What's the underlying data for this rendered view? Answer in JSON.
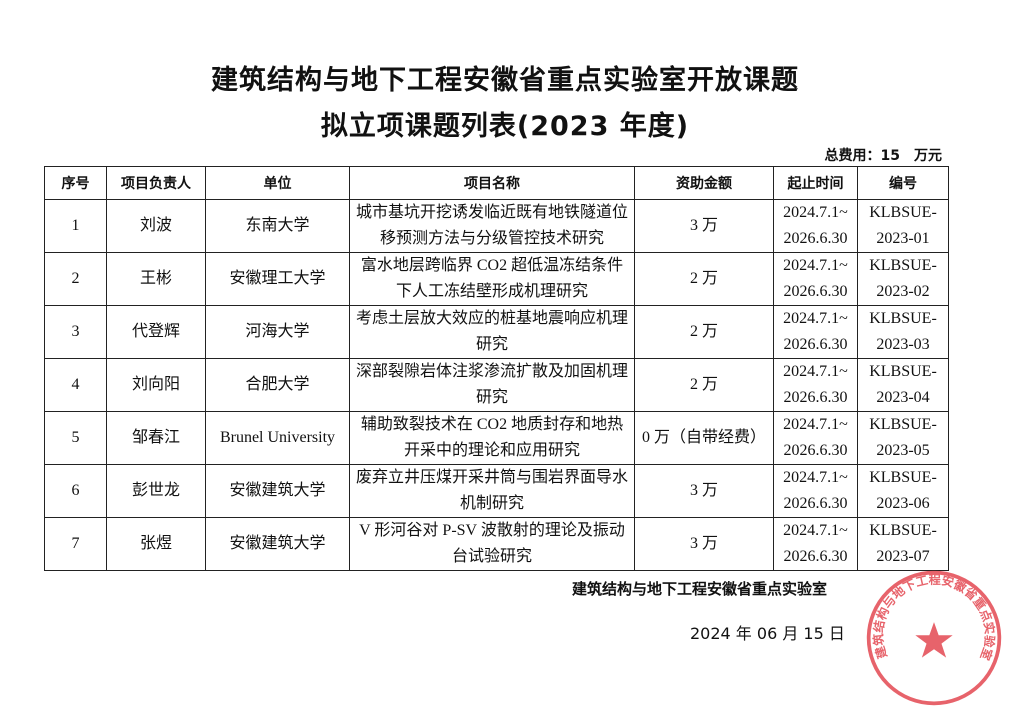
{
  "document": {
    "title_line1": "建筑结构与地下工程安徽省重点实验室开放课题",
    "title_line2": "拟立项课题列表(2023 年度)",
    "total_label": "总费用：15",
    "total_unit": "万元"
  },
  "table": {
    "headers": [
      "序号",
      "项目负责人",
      "单位",
      "项目名称",
      "资助金额",
      "起止时间",
      "编号"
    ],
    "rows": [
      {
        "no": "1",
        "leader": "刘波",
        "unit": "东南大学",
        "title": "城市基坑开挖诱发临近既有地铁隧道位移预测方法与分级管控技术研究",
        "amount": "3 万",
        "start": "2024.7.1~",
        "end": "2026.6.30",
        "code1": "KLBSUE-",
        "code2": "2023-01"
      },
      {
        "no": "2",
        "leader": "王彬",
        "unit": "安徽理工大学",
        "title": "富水地层跨临界 CO2 超低温冻结条件下人工冻结壁形成机理研究",
        "amount": "2 万",
        "start": "2024.7.1~",
        "end": "2026.6.30",
        "code1": "KLBSUE-",
        "code2": "2023-02"
      },
      {
        "no": "3",
        "leader": "代登辉",
        "unit": "河海大学",
        "title": "考虑土层放大效应的桩基地震响应机理研究",
        "amount": "2 万",
        "start": "2024.7.1~",
        "end": "2026.6.30",
        "code1": "KLBSUE-",
        "code2": "2023-03"
      },
      {
        "no": "4",
        "leader": "刘向阳",
        "unit": "合肥大学",
        "title": "深部裂隙岩体注浆渗流扩散及加固机理研究",
        "amount": "2 万",
        "start": "2024.7.1~",
        "end": "2026.6.30",
        "code1": "KLBSUE-",
        "code2": "2023-04"
      },
      {
        "no": "5",
        "leader": "邹春江",
        "unit": "Brunel University",
        "title": "辅助致裂技术在 CO2 地质封存和地热开采中的理论和应用研究",
        "amount": "0 万（自带经费）",
        "start": "2024.7.1~",
        "end": "2026.6.30",
        "code1": "KLBSUE-",
        "code2": "2023-05"
      },
      {
        "no": "6",
        "leader": "彭世龙",
        "unit": "安徽建筑大学",
        "title": "废弃立井压煤开采井筒与围岩界面导水机制研究",
        "amount": "3 万",
        "start": "2024.7.1~",
        "end": "2026.6.30",
        "code1": "KLBSUE-",
        "code2": "2023-06"
      },
      {
        "no": "7",
        "leader": "张煜",
        "unit": "安徽建筑大学",
        "title": "V 形河谷对 P-SV 波散射的理论及振动台试验研究",
        "amount": "3 万",
        "start": "2024.7.1~",
        "end": "2026.6.30",
        "code1": "KLBSUE-",
        "code2": "2023-07"
      }
    ]
  },
  "footer": {
    "signature": "建筑结构与地下工程安徽省重点实验室",
    "date": "2024 年 06 月 15 日"
  },
  "seal": {
    "text": "建筑结构与地下工程安徽省重点实验室",
    "color": "#e0303a"
  }
}
